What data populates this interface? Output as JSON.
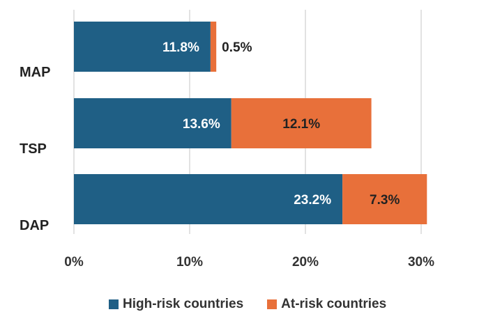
{
  "chart_data": {
    "type": "bar",
    "orientation": "horizontal",
    "stacked": true,
    "categories": [
      "MAP",
      "TSP",
      "DAP"
    ],
    "series": [
      {
        "name": "High-risk countries",
        "values": [
          11.8,
          13.6,
          23.2
        ],
        "labels": [
          "11.8%",
          "13.6%",
          "23.2%"
        ],
        "color": "#1f5f85",
        "label_color": "#ffffff"
      },
      {
        "name": "At-risk countries",
        "values": [
          0.5,
          12.1,
          7.3
        ],
        "labels": [
          "0.5%",
          "12.1%",
          "7.3%"
        ],
        "color": "#e8703a",
        "label_color": "#222222"
      }
    ],
    "xlim": [
      0,
      30
    ],
    "xticks": [
      0,
      10,
      20,
      30
    ],
    "xtick_labels": [
      "0%",
      "10%",
      "20%",
      "30%"
    ],
    "grid": "vertical",
    "legend_position": "bottom"
  }
}
